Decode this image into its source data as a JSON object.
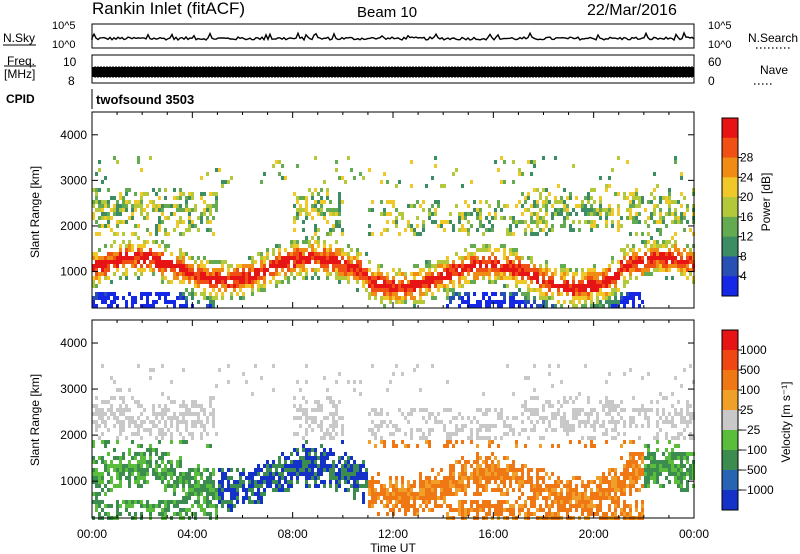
{
  "header": {
    "station": "Rankin Inlet (fitACF)",
    "beam": "Beam 10",
    "date": "22/Mar/2016"
  },
  "top_panels": {
    "nsky_label": "N.Sky",
    "nsearch_label": "N.Search",
    "nsky_ticks": [
      "10^5",
      "10^0"
    ],
    "nsearch_ticks": [
      "10^5",
      "10^0"
    ],
    "freq_label_1": "Freq.",
    "freq_label_2": "[MHz]",
    "freq_ticks_left": [
      "10",
      "8"
    ],
    "nave_label": "Nave",
    "nave_ticks": [
      "60",
      "0"
    ],
    "cpid_label": "CPID",
    "cpid_value": "twofsound 3503"
  },
  "chart_data": [
    {
      "type": "heatmap",
      "name": "power",
      "ylabel": "Slant Range [km]",
      "ylim": [
        200,
        4500
      ],
      "y_ticks": [
        1000,
        2000,
        3000,
        4000
      ],
      "xlim_hours": [
        0,
        24
      ],
      "x_ticks": [
        "00:00",
        "04:00",
        "08:00",
        "12:00",
        "16:00",
        "20:00",
        "00:00"
      ],
      "colorbar": {
        "label": "Power [dB]",
        "ticks": [
          4,
          8,
          12,
          16,
          20,
          24,
          28
        ],
        "colors": [
          "#1428e6",
          "#2850b4",
          "#3c8c64",
          "#64aa50",
          "#b4c83c",
          "#f0c828",
          "#f08c14",
          "#f05014",
          "#e61414"
        ]
      }
    },
    {
      "type": "heatmap",
      "name": "velocity",
      "ylabel": "Slant Range [km]",
      "ylim": [
        200,
        4500
      ],
      "y_ticks": [
        1000,
        2000,
        3000,
        4000
      ],
      "xlim_hours": [
        0,
        24
      ],
      "x_ticks": [
        "00:00",
        "04:00",
        "08:00",
        "12:00",
        "16:00",
        "20:00",
        "00:00"
      ],
      "xlabel": "Time UT",
      "colorbar": {
        "label": "Velocity [m s⁻¹]",
        "ticks": [
          "1000",
          "500",
          "100",
          "25",
          "−25",
          "−100",
          "−500",
          "−1000"
        ],
        "colors": [
          "#1432c8",
          "#2864b4",
          "#3c8c50",
          "#5abe3c",
          "#c8c8c8",
          "#f0a028",
          "#f07814",
          "#f04614",
          "#e61414"
        ]
      }
    }
  ]
}
